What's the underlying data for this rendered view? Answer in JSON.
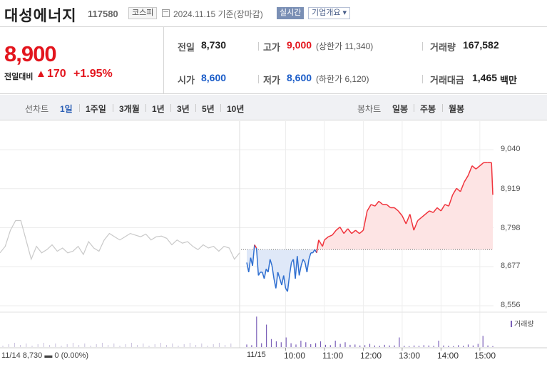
{
  "header": {
    "name": "대성에너지",
    "code": "117580",
    "market": "코스피",
    "date_text": "2024.11.15 기준(장마감)",
    "realtime_label": "실시간",
    "overview_label": "기업개요 ▾"
  },
  "price": {
    "current": "8,900",
    "diff_label": "전일대비",
    "diff_arrow": "▲",
    "diff_value": "170",
    "diff_rate": "+1.95%"
  },
  "stats": {
    "prev_close": {
      "label": "전일",
      "value": "8,730"
    },
    "high": {
      "label": "고가",
      "value": "9,000",
      "sub": "(상한가 11,340)"
    },
    "volume": {
      "label": "거래량",
      "value": "167,582"
    },
    "open": {
      "label": "시가",
      "value": "8,600"
    },
    "low": {
      "label": "저가",
      "value": "8,600",
      "sub": "(하한가 6,120)"
    },
    "amount": {
      "label": "거래대금",
      "value": "1,465",
      "unit": "백만"
    }
  },
  "tabs": {
    "line_label": "선차트",
    "line_periods": [
      "1일",
      "1주일",
      "3개월",
      "1년",
      "3년",
      "5년",
      "10년"
    ],
    "active": "1일",
    "candle_label": "봉차트",
    "candle_periods": [
      "일봉",
      "주봉",
      "월봉"
    ]
  },
  "chart_data": {
    "type": "line",
    "y_ticks": [
      "9,040",
      "8,919",
      "8,798",
      "8,677",
      "8,556"
    ],
    "ylim": [
      8556,
      9040
    ],
    "baseline": 8730,
    "x_ticks": [
      "11/15",
      "10:00",
      "11:00",
      "12:00",
      "13:00",
      "14:00",
      "15:00"
    ],
    "volume_label": "거래량",
    "prev_day_info": "11/14  8,730 ▬ 0 (0.00%)",
    "colors": {
      "up": "#f0333c",
      "down": "#2f6fd0",
      "prev": "#c9c9c9",
      "up_fill": "#fde4e4",
      "down_fill": "#dfe8f8",
      "volume": "#7a5fb8"
    },
    "prev_day_series": [
      8720,
      8740,
      8790,
      8820,
      8820,
      8760,
      8700,
      8740,
      8720,
      8730,
      8745,
      8725,
      8735,
      8720,
      8725,
      8740,
      8715,
      8755,
      8735,
      8725,
      8760,
      8780,
      8770,
      8760,
      8770,
      8780,
      8775,
      8770,
      8778,
      8760,
      8770,
      8772,
      8765,
      8745,
      8760,
      8750,
      8755,
      8740,
      8730,
      8745,
      8735,
      8740,
      8725,
      8740,
      8735,
      8700,
      8720
    ],
    "today_series": [
      [
        "09:00",
        8690
      ],
      [
        "09:03",
        8660
      ],
      [
        "09:06",
        8705
      ],
      [
        "09:09",
        8680
      ],
      [
        "09:12",
        8745
      ],
      [
        "09:15",
        8735
      ],
      [
        "09:18",
        8650
      ],
      [
        "09:21",
        8660
      ],
      [
        "09:24",
        8660
      ],
      [
        "09:27",
        8640
      ],
      [
        "09:30",
        8670
      ],
      [
        "09:33",
        8660
      ],
      [
        "09:36",
        8700
      ],
      [
        "09:39",
        8680
      ],
      [
        "09:42",
        8640
      ],
      [
        "09:45",
        8610
      ],
      [
        "09:48",
        8660
      ],
      [
        "09:51",
        8640
      ],
      [
        "09:54",
        8620
      ],
      [
        "09:57",
        8650
      ],
      [
        "10:00",
        8610
      ],
      [
        "10:03",
        8600
      ],
      [
        "10:06",
        8650
      ],
      [
        "10:09",
        8690
      ],
      [
        "10:12",
        8700
      ],
      [
        "10:15",
        8640
      ],
      [
        "10:18",
        8710
      ],
      [
        "10:21",
        8650
      ],
      [
        "10:24",
        8680
      ],
      [
        "10:27",
        8700
      ],
      [
        "10:30",
        8690
      ],
      [
        "10:33",
        8660
      ],
      [
        "10:36",
        8700
      ],
      [
        "10:39",
        8720
      ],
      [
        "10:42",
        8720
      ],
      [
        "10:45",
        8730
      ],
      [
        "10:48",
        8720
      ],
      [
        "10:51",
        8760
      ],
      [
        "10:54",
        8750
      ],
      [
        "10:57",
        8740
      ],
      [
        "11:00",
        8760
      ],
      [
        "11:06",
        8770
      ],
      [
        "11:12",
        8775
      ],
      [
        "11:18",
        8790
      ],
      [
        "11:24",
        8800
      ],
      [
        "11:30",
        8780
      ],
      [
        "11:36",
        8795
      ],
      [
        "11:42",
        8780
      ],
      [
        "11:48",
        8790
      ],
      [
        "11:54",
        8780
      ],
      [
        "12:00",
        8790
      ],
      [
        "12:06",
        8850
      ],
      [
        "12:12",
        8870
      ],
      [
        "12:18",
        8865
      ],
      [
        "12:24",
        8880
      ],
      [
        "12:30",
        8870
      ],
      [
        "12:36",
        8870
      ],
      [
        "12:42",
        8860
      ],
      [
        "12:48",
        8860
      ],
      [
        "12:54",
        8850
      ],
      [
        "13:00",
        8835
      ],
      [
        "13:06",
        8810
      ],
      [
        "13:12",
        8840
      ],
      [
        "13:18",
        8790
      ],
      [
        "13:24",
        8820
      ],
      [
        "13:30",
        8830
      ],
      [
        "13:36",
        8840
      ],
      [
        "13:42",
        8850
      ],
      [
        "13:48",
        8845
      ],
      [
        "13:54",
        8860
      ],
      [
        "14:00",
        8850
      ],
      [
        "14:06",
        8870
      ],
      [
        "14:12",
        8865
      ],
      [
        "14:18",
        8900
      ],
      [
        "14:24",
        8920
      ],
      [
        "14:30",
        8910
      ],
      [
        "14:36",
        8940
      ],
      [
        "14:42",
        8960
      ],
      [
        "14:48",
        8990
      ],
      [
        "14:54",
        8980
      ],
      [
        "15:00",
        8990
      ],
      [
        "15:06",
        9000
      ],
      [
        "15:12",
        9000
      ],
      [
        "15:18",
        9000
      ],
      [
        "15:20",
        8900
      ]
    ],
    "volume_series": [
      0.08,
      0.06,
      0.95,
      0.12,
      0.7,
      0.25,
      0.18,
      0.15,
      0.3,
      0.12,
      0.08,
      0.2,
      0.15,
      0.09,
      0.12,
      0.18,
      0.07,
      0.06,
      0.2,
      0.1,
      0.15,
      0.07,
      0.08,
      0.05,
      0.06,
      0.1,
      0.05,
      0.04,
      0.07,
      0.05,
      0.05,
      0.3,
      0.04,
      0.03,
      0.05,
      0.04,
      0.06,
      0.05,
      0.04,
      0.2,
      0.05,
      0.04,
      0.03,
      0.06,
      0.04,
      0.08,
      0.05,
      0.1,
      0.35,
      0.05,
      0.03
    ]
  }
}
